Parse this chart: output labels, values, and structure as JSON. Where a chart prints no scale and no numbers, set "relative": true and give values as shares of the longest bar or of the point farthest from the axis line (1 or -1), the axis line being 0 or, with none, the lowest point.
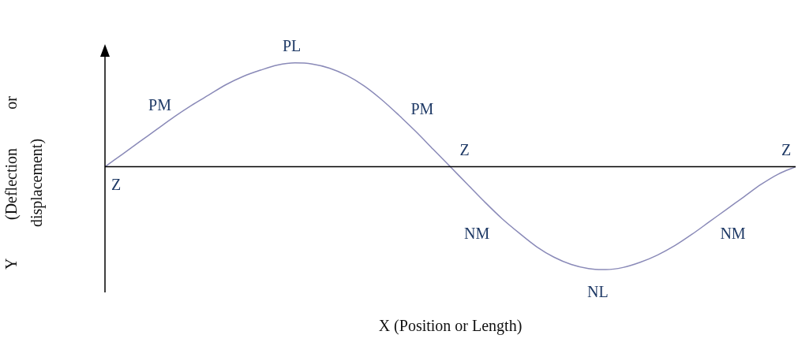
{
  "chart_data": {
    "type": "line",
    "relative": true,
    "xlabel": "X (Position or Length)",
    "ylabel": "Y (Deflection or displacement)",
    "categories": [
      null,
      null,
      null,
      null,
      null,
      null,
      null,
      null,
      null,
      null,
      null,
      null,
      null,
      null,
      null,
      null,
      null,
      null,
      null,
      null,
      null,
      null,
      null,
      null,
      null,
      null,
      null,
      null,
      null,
      null,
      null,
      null,
      null,
      null,
      null,
      null,
      null,
      null,
      null,
      null,
      null
    ],
    "series": [
      {
        "color": "#8a8ab8",
        "values": [
          0,
          0.12,
          0.24,
          0.36,
          0.48,
          0.59,
          0.69,
          0.79,
          0.87,
          0.93,
          0.98,
          1,
          0.99,
          0.95,
          0.88,
          0.78,
          0.65,
          0.5,
          0.34,
          0.17,
          0,
          -0.17,
          -0.34,
          -0.5,
          -0.64,
          -0.77,
          -0.87,
          -0.94,
          -0.98,
          -0.99,
          -0.97,
          -0.92,
          -0.85,
          -0.76,
          -0.65,
          -0.53,
          -0.41,
          -0.29,
          -0.17,
          -0.07,
          0
        ]
      }
    ],
    "annotations": [
      "Z",
      "PM",
      "PL",
      "PM",
      "Z",
      "NM",
      "NL",
      "NM",
      "Z"
    ]
  }
}
